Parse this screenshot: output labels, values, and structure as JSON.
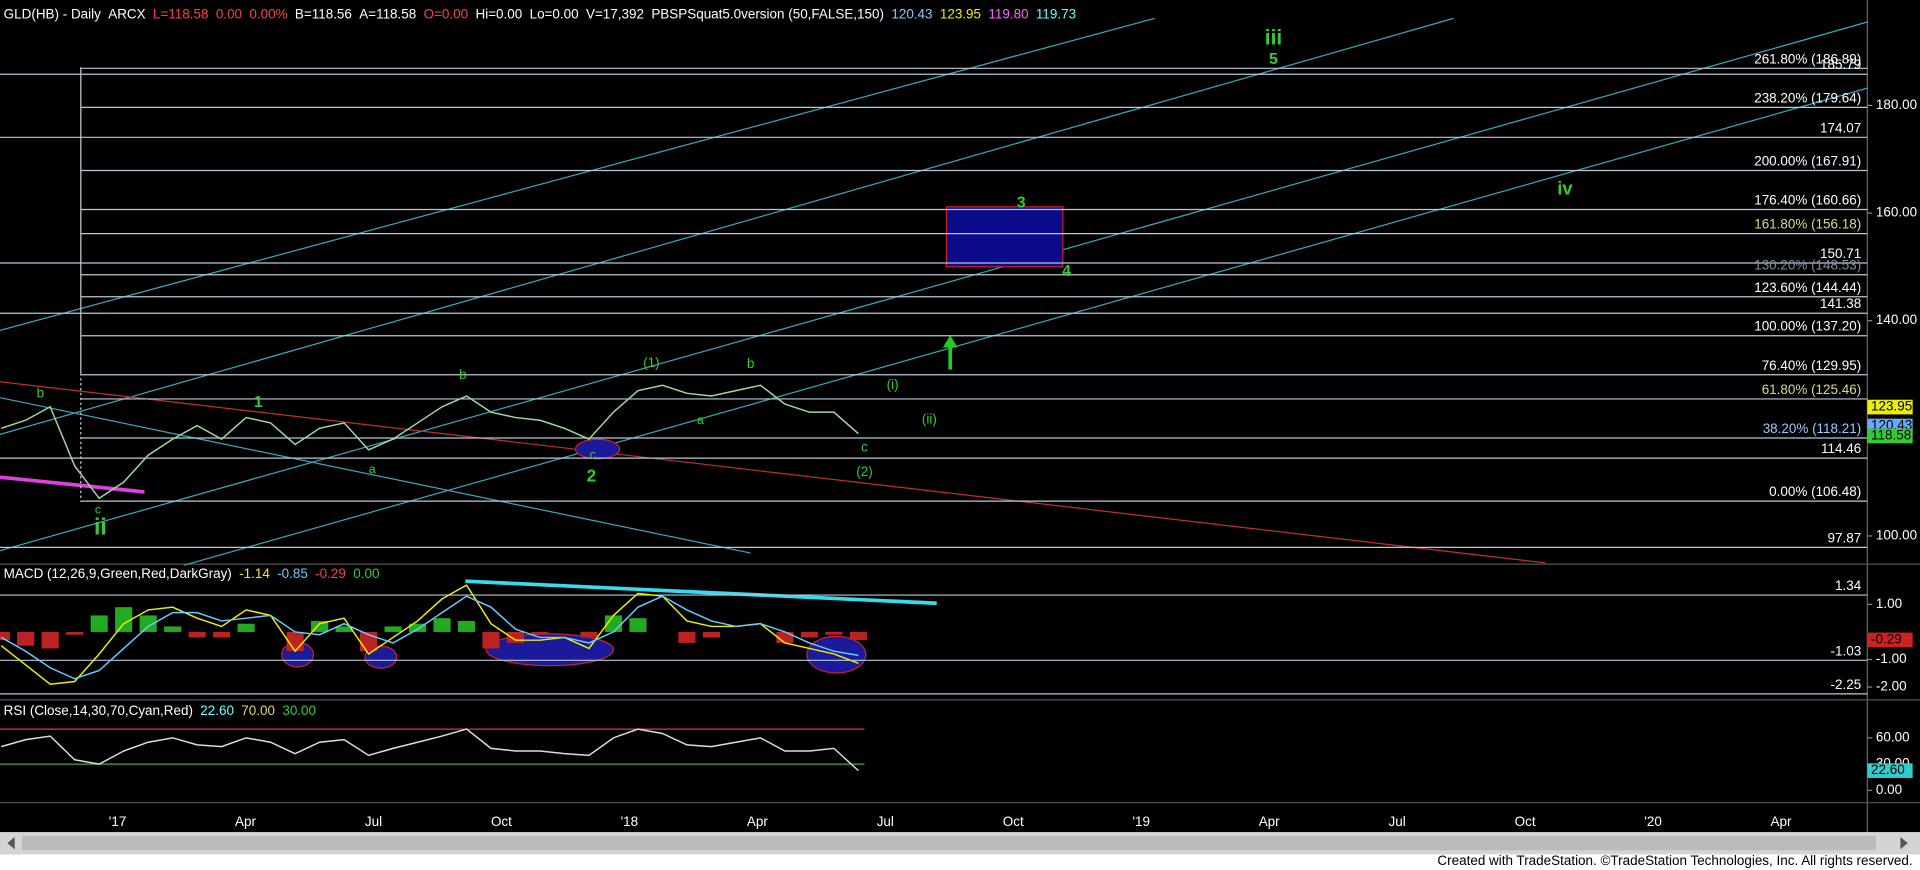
{
  "chart_data": [
    {
      "type": "line",
      "header": [
        {
          "text": "GLD(HB) - Daily",
          "color": "#ffffff"
        },
        {
          "text": "ARCX",
          "color": "#ffffff"
        },
        {
          "text": "L=118.58",
          "color": "#ff4040"
        },
        {
          "text": "0.00",
          "color": "#ff4040"
        },
        {
          "text": "0.00%",
          "color": "#ff4040"
        },
        {
          "text": "B=118.56",
          "color": "#ffffff"
        },
        {
          "text": "A=118.58",
          "color": "#ffffff"
        },
        {
          "text": "O=0.00",
          "color": "#ff4040"
        },
        {
          "text": "Hi=0.00",
          "color": "#ffffff"
        },
        {
          "text": "Lo=0.00",
          "color": "#ffffff"
        },
        {
          "text": "V=17,392",
          "color": "#ffffff"
        },
        {
          "text": "PBSPSquat5.0version (50,FALSE,150)",
          "color": "#ffffff"
        },
        {
          "text": "120.43",
          "color": "#88ccff"
        },
        {
          "text": "123.95",
          "color": "#eeee00"
        },
        {
          "text": "119.80",
          "color": "#ff66ff"
        },
        {
          "text": "119.73",
          "color": "#66ffff"
        }
      ],
      "values": [
        120,
        121.5,
        124,
        113,
        107,
        110,
        115,
        118,
        120.5,
        118,
        122,
        121,
        117,
        120,
        121,
        116,
        118,
        121,
        124,
        126,
        123,
        122,
        121.5,
        120,
        118,
        123,
        127,
        128,
        126.5,
        126,
        127,
        128,
        124.5,
        123,
        123,
        119
      ],
      "color": "#9fd99f",
      "ylim": [
        95,
        198.9
      ],
      "yticks": [
        {
          "value": 100,
          "label": "100.00"
        },
        {
          "value": 140,
          "label": "140.00"
        },
        {
          "value": 160,
          "label": "160.00"
        },
        {
          "value": 180,
          "label": "180.00"
        }
      ],
      "levels": [
        {
          "value": 186.89,
          "label": "261.80% (186.89)",
          "color": "#ffffff"
        },
        {
          "value": 185.79,
          "label": "185.79",
          "color": "#ffffff"
        },
        {
          "value": 179.64,
          "label": "238.20% (179.64)",
          "color": "#ffffff"
        },
        {
          "value": 174.07,
          "label": "174.07",
          "color": "#ffffff"
        },
        {
          "value": 167.91,
          "label": "200.00% (167.91)",
          "color": "#ffffff"
        },
        {
          "value": 160.66,
          "label": "176.40% (160.66)",
          "color": "#ffffff"
        },
        {
          "value": 156.18,
          "label": "161.80% (156.18)",
          "color": "#d8d890"
        },
        {
          "value": 150.71,
          "label": "150.71",
          "color": "#ffffff"
        },
        {
          "value": 148.53,
          "label": "130.20% (148.53)",
          "color": "#7f8fa0"
        },
        {
          "value": 144.44,
          "label": "123.60% (144.44)",
          "color": "#ffffff"
        },
        {
          "value": 141.38,
          "label": "141.38",
          "color": "#ffffff"
        },
        {
          "value": 137.2,
          "label": "100.00% (137.20)",
          "color": "#ffffff"
        },
        {
          "value": 129.95,
          "label": "76.40% (129.95)",
          "color": "#ffffff"
        },
        {
          "value": 125.46,
          "label": "61.80% (125.46)",
          "color": "#d8d890"
        },
        {
          "value": 118.21,
          "label": "38.20% (118.21)",
          "color": "#99ccff"
        },
        {
          "value": 114.46,
          "label": "114.46",
          "color": "#ffffff"
        },
        {
          "value": 106.48,
          "label": "0.00% (106.48)",
          "color": "#ffffff"
        },
        {
          "value": 97.87,
          "label": "97.87",
          "color": "#ffffff"
        }
      ],
      "level_color": "#b8c8d8",
      "last_values": [
        {
          "value": 123.95,
          "color": "#eeee00"
        },
        {
          "value": 120.43,
          "color": "#66aaff"
        },
        {
          "value": 118.58,
          "color": "#33cc33"
        }
      ],
      "annotations": [
        "iii",
        "5",
        "iv",
        "3",
        "4",
        "(1)",
        "b",
        "b",
        "b",
        "1",
        "a",
        "a",
        "c",
        "2",
        "(i)",
        "(ii)",
        "c",
        "(2)",
        "ii",
        "c"
      ],
      "annotation_color": "#33cc33",
      "xticks": [
        "'17",
        "Apr",
        "Jul",
        "Oct",
        "'18",
        "Apr",
        "Jul",
        "Oct",
        "'19",
        "Apr",
        "Jul",
        "Oct",
        "'20",
        "Apr"
      ]
    },
    {
      "type": "macd",
      "header": [
        {
          "text": "MACD (12,26,9,Green,Red,DarkGray)",
          "color": "#ffffff"
        },
        {
          "text": "-1.14",
          "color": "#eeee00"
        },
        {
          "text": "-0.85",
          "color": "#66ccff"
        },
        {
          "text": "-0.29",
          "color": "#ff4040"
        },
        {
          "text": "0.00",
          "color": "#33cc33"
        }
      ],
      "series": [
        {
          "values": [
            -0.5,
            -1.2,
            -1.9,
            -1.8,
            -0.8,
            0.3,
            0.8,
            0.9,
            0.5,
            0.2,
            0.8,
            0.6,
            -0.7,
            0.3,
            0.5,
            -0.8,
            -0.2,
            0.4,
            1.2,
            1.7,
            0.3,
            -0.3,
            -0.3,
            -0.2,
            -0.6,
            0.6,
            1.4,
            1.3,
            0.4,
            0.2,
            0.2,
            0.3,
            -0.4,
            -0.6,
            -0.8,
            -1.14
          ],
          "color": "#eeee00"
        },
        {
          "values": [
            -0.2,
            -0.7,
            -1.3,
            -1.7,
            -1.4,
            -0.6,
            0.2,
            0.7,
            0.7,
            0.4,
            0.5,
            0.6,
            0,
            -0.1,
            0.3,
            -0.1,
            -0.4,
            0.1,
            0.7,
            1.3,
            0.9,
            0.1,
            -0.2,
            -0.2,
            -0.4,
            0,
            0.9,
            1.3,
            0.8,
            0.4,
            0.2,
            0.3,
            0,
            -0.4,
            -0.7,
            -0.85
          ],
          "color": "#66ccff"
        }
      ],
      "histogram": [
        -0.3,
        -0.5,
        -0.6,
        -0.1,
        0.6,
        0.9,
        0.6,
        0.2,
        -0.2,
        -0.2,
        0.3,
        0,
        -0.7,
        0.4,
        0.2,
        -0.7,
        0.2,
        0.3,
        0.5,
        0.4,
        -0.6,
        -0.4,
        -0.1,
        0,
        -0.2,
        0.6,
        0.5,
        0,
        -0.4,
        -0.2,
        0,
        0,
        -0.4,
        -0.2,
        -0.1,
        -0.29
      ],
      "histogram_colors": [
        "#22aa22",
        "#bb2222"
      ],
      "ylim": [
        -2.38,
        2.42
      ],
      "yticks": [
        {
          "value": 1,
          "label": "1.00"
        },
        {
          "value": -1,
          "label": "-1.00"
        },
        {
          "value": -2,
          "label": "-2.00"
        }
      ],
      "levels": [
        {
          "value": 1.34,
          "label": "1.34",
          "color": "#ffffff"
        },
        {
          "value": -1.03,
          "label": "-1.03",
          "color": "#ffffff"
        },
        {
          "value": -2.25,
          "label": "-2.25",
          "color": "#ffffff"
        }
      ],
      "level_color": "#b8c8d8",
      "last_values": [
        {
          "value": -0.29,
          "color": "#cc2222"
        }
      ]
    },
    {
      "type": "rsi",
      "header": [
        {
          "text": "RSI (Close,14,30,70,Cyan,Red)",
          "color": "#ffffff"
        },
        {
          "text": "22.60",
          "color": "#66ffff"
        },
        {
          "text": "70.00",
          "color": "#dddd66"
        },
        {
          "text": "30.00",
          "color": "#33cc33"
        }
      ],
      "values": [
        50,
        58,
        62,
        35,
        30,
        45,
        55,
        60,
        52,
        50,
        60,
        55,
        42,
        55,
        58,
        40,
        48,
        55,
        62,
        70,
        48,
        45,
        45,
        42,
        40,
        60,
        70,
        65,
        52,
        50,
        55,
        60,
        45,
        45,
        48,
        22.6
      ],
      "color": "#dddddd",
      "ylim": [
        -12.6,
        100.5
      ],
      "yticks": [
        {
          "value": 60,
          "label": "60.00"
        },
        {
          "value": 30,
          "label": "30.00"
        },
        {
          "value": 0,
          "label": "0.00"
        }
      ],
      "bands": [
        {
          "value": 70,
          "color": "#cc4444"
        },
        {
          "value": 30,
          "color": "#44aa44"
        }
      ],
      "last_values": [
        {
          "value": 22.6,
          "label": "22.60",
          "color": "#33cccc"
        }
      ]
    }
  ],
  "footer": "Created with TradeStation. ©TradeStation Technologies, Inc. All rights reserved."
}
